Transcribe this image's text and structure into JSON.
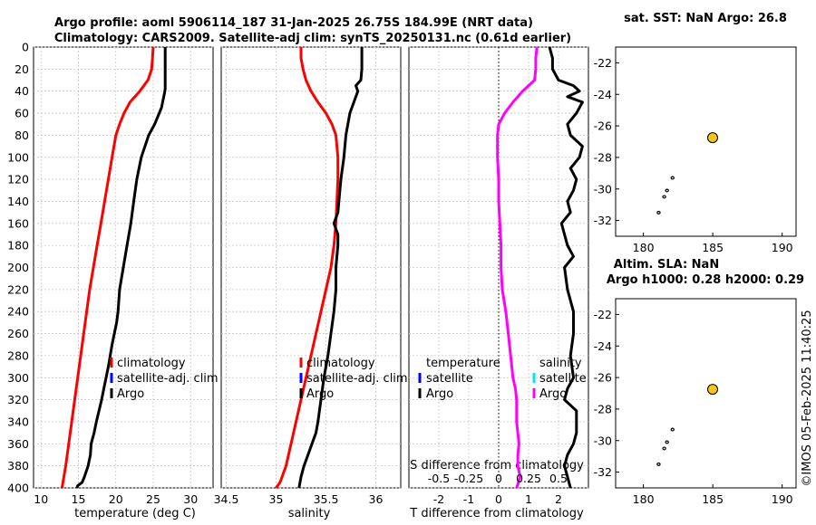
{
  "header": {
    "line1": "Argo profile: aoml 5906114_187 31-Jan-2025 26.75S 184.99E (NRT data)",
    "line2": "Climatology: CARS2009. Satellite-adj clim: synTS_20250131.nc (0.61d earlier)"
  },
  "watermark": "©IMOS 05-Feb-2025 11:40:25",
  "colors": {
    "climatology": "#ff0000",
    "satellite_clim": "#0000ff",
    "argo": "#000000",
    "t_diff": "#000000",
    "s_diff": "#ff00ff",
    "s_diff_sat": "#00e5ff",
    "marker": "#f5c518"
  },
  "chart_data": [
    {
      "id": "temperature",
      "type": "line",
      "xlabel": "temperature (deg C)",
      "ylabel": "",
      "xlim": [
        9,
        33
      ],
      "ylim": [
        400,
        0
      ],
      "xticks": [
        10,
        15,
        20,
        25,
        30
      ],
      "yticks": [
        0,
        20,
        40,
        60,
        80,
        100,
        120,
        140,
        160,
        180,
        200,
        220,
        240,
        260,
        280,
        300,
        320,
        340,
        360,
        380,
        400
      ],
      "legend": [
        "climatology",
        "satellite-adj. clim",
        "Argo"
      ],
      "series": [
        {
          "name": "climatology",
          "x": [
            25,
            24.9,
            24.8,
            24.3,
            23.2,
            21.9,
            21.1,
            20.5,
            20,
            19.5,
            19,
            18.5,
            18,
            17.5,
            17,
            16.5,
            16.1,
            15.7,
            15.3,
            14.9,
            14.5,
            14.1,
            13.7,
            13.3,
            12.8
          ],
          "y": [
            0,
            10,
            20,
            30,
            40,
            50,
            60,
            70,
            80,
            100,
            120,
            140,
            160,
            180,
            200,
            220,
            240,
            260,
            280,
            300,
            320,
            340,
            360,
            380,
            400
          ]
        },
        {
          "name": "Argo",
          "x": [
            26.6,
            26.6,
            26.6,
            26.6,
            26.6,
            26.5,
            26.1,
            25.2,
            24.4,
            23.4,
            22.8,
            22.4,
            22.0,
            21.5,
            21.0,
            20.5,
            20.3,
            20.1,
            19.5,
            19.0,
            18.4,
            18.1,
            17.4,
            17.1,
            16.7,
            16.6,
            16.3,
            15.8,
            15.5,
            14.9,
            14.8
          ],
          "y": [
            0,
            20,
            30,
            36,
            38,
            42,
            55,
            70,
            80,
            100,
            120,
            140,
            160,
            180,
            200,
            220,
            240,
            250,
            270,
            290,
            310,
            320,
            340,
            350,
            360,
            370,
            380,
            390,
            395,
            398,
            400
          ]
        }
      ]
    },
    {
      "id": "salinity",
      "type": "line",
      "xlabel": "salinity",
      "ylabel": "",
      "xlim": [
        34.45,
        36.25
      ],
      "xticks": [
        34.5,
        35,
        35.5,
        36
      ],
      "xticklabels": [
        "34.5",
        "35",
        "35.5",
        "36"
      ],
      "legend": [
        "climatology",
        "satellite-adj. clim",
        "Argo"
      ],
      "series": [
        {
          "name": "climatology",
          "x": [
            35.25,
            35.25,
            35.27,
            35.3,
            35.35,
            35.42,
            35.5,
            35.56,
            35.6,
            35.62,
            35.62,
            35.61,
            35.6,
            35.58,
            35.55,
            35.5,
            35.45,
            35.4,
            35.35,
            35.3,
            35.25,
            35.2,
            35.15,
            35.1,
            35.04,
            35.0
          ],
          "y": [
            0,
            10,
            20,
            30,
            40,
            50,
            60,
            70,
            80,
            100,
            120,
            140,
            160,
            180,
            200,
            220,
            240,
            260,
            280,
            300,
            320,
            340,
            360,
            380,
            395,
            400
          ]
        },
        {
          "name": "Argo",
          "x": [
            35.86,
            35.86,
            35.86,
            35.85,
            35.8,
            35.82,
            35.78,
            35.74,
            35.7,
            35.68,
            35.65,
            35.63,
            35.62,
            35.6,
            35.58,
            35.62,
            35.62,
            35.6,
            35.6,
            35.58,
            35.55,
            35.52,
            35.48,
            35.45,
            35.42,
            35.4,
            35.36,
            35.32,
            35.28,
            35.25,
            35.23
          ],
          "y": [
            0,
            10,
            20,
            30,
            35,
            40,
            50,
            60,
            80,
            100,
            120,
            140,
            150,
            155,
            160,
            170,
            180,
            200,
            220,
            240,
            260,
            280,
            300,
            320,
            340,
            350,
            360,
            370,
            380,
            390,
            400
          ]
        }
      ]
    },
    {
      "id": "differences",
      "type": "line",
      "xlabel": "T difference from climatology",
      "xlabel_top": "S difference from climatology",
      "xlim": [
        -3.0,
        3.0
      ],
      "xticks": [
        -2,
        -1,
        0,
        1,
        2
      ],
      "s_scale": 4,
      "sticks": [
        -0.5,
        -0.25,
        0,
        0.25,
        0.5
      ],
      "sticklabels": [
        "-0.5",
        "-0.25",
        "0",
        "0.25",
        "0.5"
      ],
      "legend_left_title": "temperature",
      "legend_left": [
        "satellite",
        "Argo"
      ],
      "legend_right_title": "salinity",
      "legend_right": [
        "satellite",
        "Argo"
      ],
      "series": [
        {
          "name": "T Argo",
          "x": [
            1.7,
            1.8,
            1.8,
            2.0,
            2.5,
            2.7,
            2.3,
            2.8,
            2.6,
            2.3,
            2.4,
            2.8,
            2.7,
            2.4,
            2.6,
            2.5,
            2.3,
            2.4,
            2.1,
            2.2,
            2.3,
            2.5,
            2.2,
            2.3,
            2.5,
            2.5,
            2.4,
            2.5,
            2.3,
            2.2,
            2.6,
            2.6,
            2.5,
            2.3,
            2.2,
            2.4
          ],
          "y": [
            0,
            10,
            20,
            30,
            35,
            40,
            45,
            50,
            60,
            70,
            80,
            90,
            100,
            110,
            120,
            130,
            140,
            150,
            160,
            170,
            180,
            190,
            200,
            220,
            240,
            260,
            280,
            300,
            310,
            320,
            330,
            350,
            360,
            370,
            380,
            400
          ]
        },
        {
          "name": "S Argo",
          "x": [
            0.32,
            0.31,
            0.31,
            0.3,
            0.25,
            0.2,
            0.12,
            0.05,
            0.0,
            -0.01,
            -0.01,
            0.0,
            0.0,
            0.01,
            0.02,
            0.02,
            0.03,
            0.06,
            0.08,
            0.1,
            0.12,
            0.14,
            0.15,
            0.15,
            0.17,
            0.16,
            0.16,
            0.18,
            0.15
          ],
          "y": [
            0,
            10,
            20,
            30,
            35,
            40,
            50,
            60,
            70,
            80,
            100,
            120,
            140,
            160,
            180,
            200,
            220,
            240,
            260,
            280,
            300,
            310,
            320,
            340,
            360,
            370,
            380,
            390,
            400
          ]
        }
      ]
    },
    {
      "id": "map_sst",
      "type": "scatter",
      "title": "sat. SST: NaN Argo: 26.8",
      "xlim": [
        178,
        191
      ],
      "ylim": [
        -33,
        -21
      ],
      "xticks": [
        180,
        185,
        190
      ],
      "yticks": [
        -22,
        -24,
        -26,
        -28,
        -30,
        -32
      ],
      "argo_position": {
        "lon": 184.99,
        "lat": -26.75
      },
      "islands": [
        [
          182.1,
          -29.3
        ],
        [
          181.7,
          -30.1
        ],
        [
          181.5,
          -30.5
        ],
        [
          181.1,
          -31.5
        ]
      ]
    },
    {
      "id": "map_sla",
      "type": "scatter",
      "title": "Altim. SLA: NaN",
      "title2": "Argo h1000: 0.28 h2000: 0.29",
      "xlim": [
        178,
        191
      ],
      "ylim": [
        -33,
        -21
      ],
      "xticks": [
        180,
        185,
        190
      ],
      "yticks": [
        -22,
        -24,
        -26,
        -28,
        -30,
        -32
      ],
      "argo_position": {
        "lon": 184.99,
        "lat": -26.75
      },
      "islands": [
        [
          182.1,
          -29.3
        ],
        [
          181.7,
          -30.1
        ],
        [
          181.5,
          -30.5
        ],
        [
          181.1,
          -31.5
        ]
      ]
    }
  ]
}
